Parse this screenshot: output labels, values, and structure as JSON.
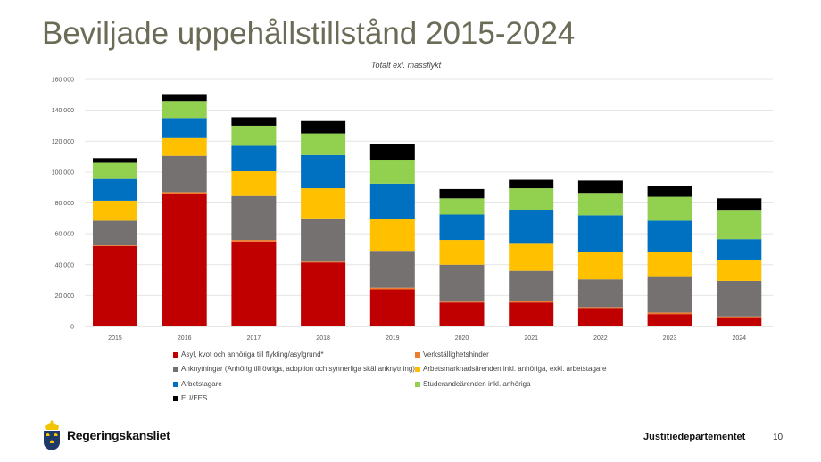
{
  "title": "Beviljade uppehållstillstånd 2015-2024",
  "chart_data": {
    "type": "bar",
    "stacked": true,
    "title": "Totalt exl. massflykt",
    "xlabel": "",
    "ylabel": "",
    "ylim": [
      0,
      160000
    ],
    "yticks": [
      0,
      20000,
      40000,
      60000,
      80000,
      100000,
      120000,
      140000,
      160000
    ],
    "ytick_labels": [
      "0",
      "20 000",
      "40 000",
      "60 000",
      "80 000",
      "100 000",
      "120 000",
      "140 000",
      "160 000"
    ],
    "grid": true,
    "legend_position": "bottom",
    "categories": [
      "2015",
      "2016",
      "2017",
      "2018",
      "2019",
      "2020",
      "2021",
      "2022",
      "2023",
      "2024"
    ],
    "series": [
      {
        "name": "Asyl, kvot och anhöriga till flykting/asylgrund*",
        "color": "#c00000",
        "values": [
          52000,
          86000,
          55000,
          41500,
          24000,
          15500,
          15500,
          12000,
          8000,
          6000
        ]
      },
      {
        "name": "Verkställighetshinder",
        "color": "#ed7d31",
        "values": [
          500,
          1000,
          1000,
          500,
          1000,
          500,
          1000,
          500,
          1000,
          500
        ]
      },
      {
        "name": "Anknytningar (Anhörig till övriga, adoption och synnerliga skäl anknytning)",
        "color": "#767171",
        "values": [
          16000,
          23500,
          28500,
          28000,
          24000,
          24000,
          19500,
          18000,
          23000,
          23000
        ]
      },
      {
        "name": "Arbetsmarknadsärenden inkl. anhöriga, exkl. arbetstagare",
        "color": "#ffc000",
        "values": [
          13000,
          11500,
          16000,
          19500,
          20500,
          16000,
          17500,
          17500,
          16000,
          13500
        ]
      },
      {
        "name": "Arbetstagare",
        "color": "#0070c0",
        "values": [
          14000,
          13000,
          16500,
          21500,
          23000,
          16500,
          22000,
          24000,
          20500,
          13500
        ]
      },
      {
        "name": "Studerandeärenden inkl. anhöriga",
        "color": "#92d050",
        "values": [
          10500,
          11000,
          13000,
          14000,
          15500,
          10500,
          14000,
          14500,
          15500,
          18500
        ]
      },
      {
        "name": "EU/EES",
        "color": "#000000",
        "values": [
          3000,
          4500,
          5500,
          8000,
          10000,
          6000,
          5500,
          8000,
          7000,
          8000
        ]
      }
    ]
  },
  "footer": {
    "logo_text": "Regeringskansliet",
    "department": "Justitiedepartementet",
    "page_number": "10"
  }
}
